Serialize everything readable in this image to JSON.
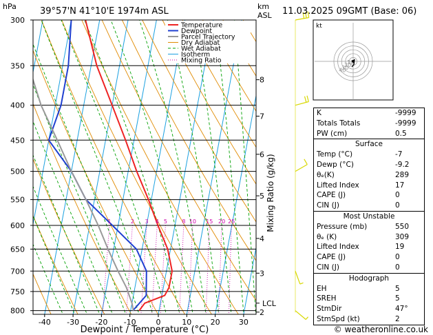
{
  "header": {
    "units_left": "hPa",
    "location": "39°57'N  41°10'E  1974m  ASL",
    "units_right_1": "km",
    "units_right_2": "ASL",
    "datetime": "11.03.2025  09GMT  (Base: 06)"
  },
  "footer": {
    "copyright": "© weatheronline.co.uk"
  },
  "colors": {
    "temperature": "#ee2222",
    "dewpoint": "#1f3fd0",
    "parcel": "#999999",
    "dry_adiabat": "#e08a00",
    "wet_adiabat": "#00a000",
    "isotherm": "#1aa0e0",
    "mixing_ratio": "#cc00aa",
    "wind_barb": "#d8d800"
  },
  "chart_data": {
    "type": "skew-t",
    "xlabel": "Dewpoint / Temperature (°C)",
    "ylabel_right": "Mixing Ratio (g/kg)",
    "xticks": [
      -40,
      -30,
      -20,
      -10,
      0,
      10,
      20,
      30
    ],
    "pressure_levels": [
      300,
      350,
      400,
      450,
      500,
      550,
      600,
      650,
      700,
      750,
      800
    ],
    "height_ticks": [
      {
        "label": "8",
        "p": 367
      },
      {
        "label": "7",
        "p": 415
      },
      {
        "label": "6",
        "p": 472
      },
      {
        "label": "5",
        "p": 543
      },
      {
        "label": "4",
        "p": 627
      },
      {
        "label": "3",
        "p": 705
      },
      {
        "label": "LCL",
        "p": 780
      },
      {
        "label": "2",
        "p": 804
      }
    ],
    "mixing_ratio_labels": [
      "1",
      "2",
      "3",
      "4",
      "5",
      "8",
      "10",
      "15",
      "20",
      "25"
    ],
    "mixing_ratio_values": [
      1,
      2,
      3,
      4,
      5,
      8,
      10,
      15,
      20,
      25
    ],
    "legend": [
      "Temperature",
      "Dewpoint",
      "Parcel Trajectory",
      "Dry Adiabat",
      "Wet Adiabat",
      "Isotherm",
      "Mixing Ratio"
    ],
    "series": [
      {
        "name": "Temperature",
        "points": [
          [
            800,
            -7
          ],
          [
            780,
            -5.5
          ],
          [
            760,
            1
          ],
          [
            740,
            2
          ],
          [
            700,
            2
          ],
          [
            650,
            -1
          ],
          [
            600,
            -6
          ],
          [
            550,
            -11
          ],
          [
            500,
            -17
          ],
          [
            450,
            -23
          ],
          [
            400,
            -30
          ],
          [
            350,
            -38
          ],
          [
            300,
            -45
          ]
        ]
      },
      {
        "name": "Dewpoint",
        "points": [
          [
            800,
            -9.2
          ],
          [
            760,
            -5.5
          ],
          [
            740,
            -6
          ],
          [
            700,
            -7
          ],
          [
            650,
            -12
          ],
          [
            600,
            -22
          ],
          [
            550,
            -33
          ],
          [
            500,
            -40
          ],
          [
            450,
            -50
          ],
          [
            400,
            -48
          ],
          [
            350,
            -48
          ],
          [
            300,
            -50
          ]
        ]
      },
      {
        "name": "Parcel Trajectory",
        "points": [
          [
            800,
            -9
          ],
          [
            780,
            -10
          ],
          [
            740,
            -13
          ],
          [
            700,
            -17
          ],
          [
            650,
            -22
          ],
          [
            600,
            -27
          ],
          [
            550,
            -33
          ],
          [
            500,
            -40
          ],
          [
            450,
            -47
          ],
          [
            400,
            -55
          ],
          [
            350,
            -62
          ],
          [
            320,
            -67
          ]
        ]
      }
    ]
  },
  "hodograph": {
    "label": "kt",
    "rings": [
      "40",
      "30",
      "20",
      "10"
    ]
  },
  "winds": [
    {
      "p": 300,
      "dir": 260,
      "speed": 25
    },
    {
      "p": 400,
      "dir": 255,
      "speed": 20
    },
    {
      "p": 500,
      "dir": 240,
      "speed": 12
    },
    {
      "p": 700,
      "dir": 340,
      "speed": 8
    },
    {
      "p": 800,
      "dir": 310,
      "speed": 5
    }
  ],
  "indices": [
    {
      "label": "K",
      "value": "-9999"
    },
    {
      "label": "Totals Totals",
      "value": "-9999"
    },
    {
      "label": "PW (cm)",
      "value": "0.5"
    }
  ],
  "surface": {
    "title": "Surface",
    "rows": [
      {
        "label": "Temp (°C)",
        "value": "-7"
      },
      {
        "label": "Dewp (°C)",
        "value": "-9.2"
      },
      {
        "label": "θₑ(K)",
        "value": "289"
      },
      {
        "label": "Lifted Index",
        "value": "17"
      },
      {
        "label": "CAPE (J)",
        "value": "0"
      },
      {
        "label": "CIN (J)",
        "value": "0"
      }
    ]
  },
  "most_unstable": {
    "title": "Most Unstable",
    "rows": [
      {
        "label": "Pressure (mb)",
        "value": "550"
      },
      {
        "label": "θₑ (K)",
        "value": "309"
      },
      {
        "label": "Lifted Index",
        "value": "19"
      },
      {
        "label": "CAPE (J)",
        "value": "0"
      },
      {
        "label": "CIN (J)",
        "value": "0"
      }
    ]
  },
  "hodograph_table": {
    "title": "Hodograph",
    "rows": [
      {
        "label": "EH",
        "value": "5"
      },
      {
        "label": "SREH",
        "value": "5"
      },
      {
        "label": "StmDir",
        "value": "47°"
      },
      {
        "label": "StmSpd (kt)",
        "value": "2"
      }
    ]
  }
}
